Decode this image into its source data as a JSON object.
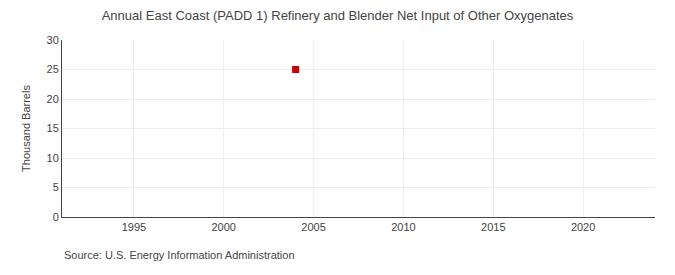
{
  "chart_data": {
    "type": "scatter",
    "title": "Annual East Coast (PADD 1) Refinery and Blender Net Input of Other Oxygenates",
    "y_label": "Thousand Barrels",
    "annotations": [
      "Source: U.S. Energy Information Administration"
    ],
    "x": [
      2004
    ],
    "values": [
      25
    ],
    "color": "#cc0000",
    "marker": "square",
    "xlim": [
      1991,
      2024
    ],
    "ylim": [
      0,
      30
    ],
    "xticks": [
      1995,
      2000,
      2005,
      2010,
      2015,
      2020
    ],
    "yticks": [
      0,
      5,
      10,
      15,
      20,
      25,
      30
    ],
    "grid": true
  }
}
